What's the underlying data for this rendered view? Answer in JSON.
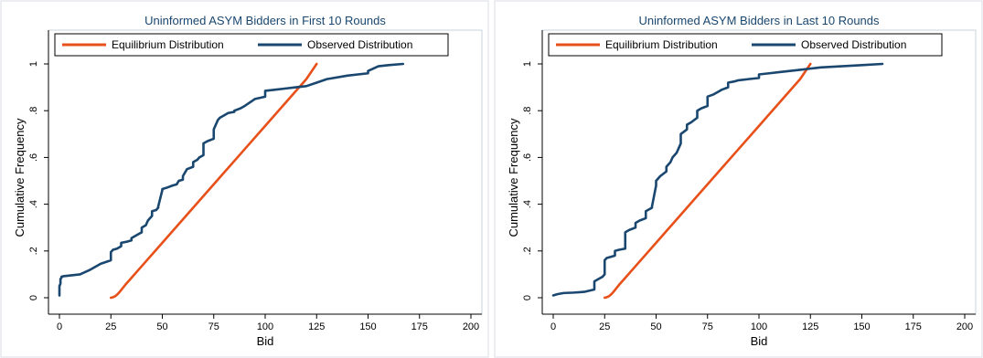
{
  "chart_data": [
    {
      "type": "line",
      "title": "Uninformed ASYM Bidders in First 10 Rounds",
      "xlabel": "Bid",
      "ylabel": "Cumulative Frequency",
      "xlim": [
        0,
        200
      ],
      "ylim": [
        0,
        1
      ],
      "x_ticks": [
        "0",
        "25",
        "50",
        "75",
        "100",
        "125",
        "150",
        "175",
        "200"
      ],
      "y_ticks": [
        "0",
        ".2",
        ".4",
        ".6",
        ".8",
        "1"
      ],
      "legend_position": "top",
      "series": [
        {
          "name": "Equilibrium Distribution",
          "color": "#e8501a",
          "x": [
            25,
            26,
            27,
            28,
            29,
            30,
            32,
            35,
            40,
            50,
            60,
            70,
            80,
            90,
            100,
            110,
            120,
            125
          ],
          "y": [
            0,
            0.002,
            0.006,
            0.013,
            0.022,
            0.033,
            0.055,
            0.085,
            0.135,
            0.235,
            0.335,
            0.435,
            0.535,
            0.635,
            0.735,
            0.835,
            0.935,
            1.0
          ]
        },
        {
          "name": "Observed Distribution",
          "color": "#1a476f",
          "x": [
            0,
            0,
            0.5,
            0.5,
            1,
            1,
            2,
            5,
            10,
            15,
            20,
            25,
            25,
            26,
            28,
            30,
            30,
            33,
            35,
            35,
            38,
            40,
            40,
            42,
            43,
            45,
            45,
            47,
            48,
            48,
            50,
            50,
            52,
            55,
            57,
            58,
            60,
            60,
            62,
            65,
            65,
            67,
            68,
            70,
            70,
            72,
            75,
            75,
            77,
            78,
            80,
            82,
            85,
            85,
            88,
            90,
            95,
            100,
            100,
            105,
            110,
            115,
            120,
            125,
            130,
            140,
            150,
            150,
            155,
            160,
            167
          ],
          "y": [
            0.01,
            0.05,
            0.06,
            0.08,
            0.085,
            0.09,
            0.092,
            0.095,
            0.1,
            0.12,
            0.145,
            0.16,
            0.195,
            0.205,
            0.21,
            0.22,
            0.235,
            0.24,
            0.245,
            0.255,
            0.27,
            0.28,
            0.3,
            0.31,
            0.33,
            0.35,
            0.37,
            0.375,
            0.385,
            0.39,
            0.46,
            0.465,
            0.47,
            0.48,
            0.485,
            0.5,
            0.505,
            0.52,
            0.55,
            0.56,
            0.58,
            0.59,
            0.6,
            0.61,
            0.66,
            0.67,
            0.68,
            0.72,
            0.76,
            0.77,
            0.78,
            0.79,
            0.795,
            0.8,
            0.81,
            0.82,
            0.85,
            0.86,
            0.885,
            0.89,
            0.895,
            0.9,
            0.905,
            0.92,
            0.935,
            0.95,
            0.96,
            0.97,
            0.99,
            0.995,
            1.0
          ]
        }
      ]
    },
    {
      "type": "line",
      "title": "Uninformed ASYM Bidders in Last 10 Rounds",
      "xlabel": "Bid",
      "ylabel": "Cumulative Frequency",
      "xlim": [
        0,
        200
      ],
      "ylim": [
        0,
        1
      ],
      "x_ticks": [
        "0",
        "25",
        "50",
        "75",
        "100",
        "125",
        "150",
        "175",
        "200"
      ],
      "y_ticks": [
        "0",
        ".2",
        ".4",
        ".6",
        ".8",
        "1"
      ],
      "legend_position": "top",
      "series": [
        {
          "name": "Equilibrium Distribution",
          "color": "#e8501a",
          "x": [
            25,
            26,
            27,
            28,
            29,
            30,
            32,
            35,
            40,
            50,
            60,
            70,
            80,
            90,
            100,
            110,
            120,
            125
          ],
          "y": [
            0,
            0.002,
            0.006,
            0.013,
            0.022,
            0.033,
            0.055,
            0.085,
            0.135,
            0.235,
            0.335,
            0.435,
            0.535,
            0.635,
            0.735,
            0.835,
            0.935,
            1.0
          ]
        },
        {
          "name": "Observed Distribution",
          "color": "#1a476f",
          "x": [
            0,
            2,
            5,
            10,
            15,
            20,
            20,
            22,
            24,
            25,
            25,
            26,
            28,
            30,
            30,
            32,
            35,
            35,
            37,
            40,
            40,
            42,
            45,
            45,
            47,
            48,
            48,
            50,
            50,
            52,
            55,
            55,
            57,
            58,
            60,
            62,
            62,
            65,
            65,
            67,
            70,
            70,
            72,
            75,
            75,
            78,
            80,
            82,
            85,
            85,
            88,
            90,
            95,
            100,
            100,
            105,
            110,
            115,
            120,
            125,
            130,
            140,
            150,
            160
          ],
          "y": [
            0.01,
            0.015,
            0.02,
            0.022,
            0.025,
            0.035,
            0.07,
            0.08,
            0.09,
            0.1,
            0.16,
            0.17,
            0.175,
            0.18,
            0.2,
            0.205,
            0.21,
            0.28,
            0.29,
            0.3,
            0.32,
            0.33,
            0.34,
            0.37,
            0.38,
            0.385,
            0.39,
            0.48,
            0.5,
            0.52,
            0.54,
            0.56,
            0.58,
            0.6,
            0.62,
            0.66,
            0.7,
            0.72,
            0.74,
            0.75,
            0.77,
            0.8,
            0.81,
            0.82,
            0.86,
            0.87,
            0.88,
            0.89,
            0.9,
            0.92,
            0.925,
            0.93,
            0.935,
            0.94,
            0.955,
            0.96,
            0.965,
            0.97,
            0.975,
            0.98,
            0.985,
            0.99,
            0.995,
            1.0
          ]
        }
      ]
    }
  ]
}
